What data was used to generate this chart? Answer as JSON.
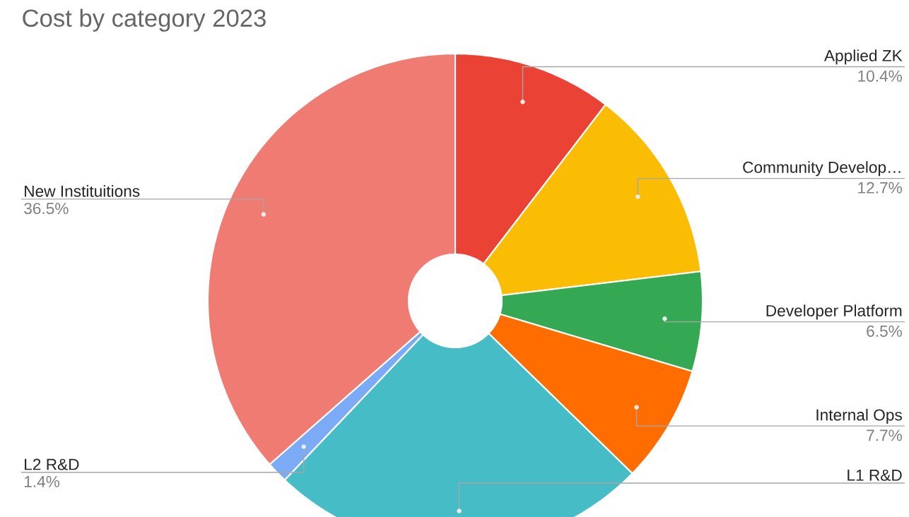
{
  "chart_data": {
    "type": "donut",
    "title": "Cost by category 2023",
    "categories": [
      "Applied ZK",
      "Community Develop…",
      "Developer Platform",
      "Internal Ops",
      "L1 R&D",
      "L2 R&D",
      "New Instituitions"
    ],
    "values": [
      10.4,
      12.7,
      6.5,
      7.7,
      24.8,
      1.4,
      36.5
    ],
    "colors": [
      "#ea4335",
      "#fbbc04",
      "#34a853",
      "#ff6d01",
      "#46bdc6",
      "#7baaf7",
      "#f07b72"
    ],
    "value_labels": [
      "10.4%",
      "12.7%",
      "6.5%",
      "7.7%",
      null,
      "1.4%",
      "36.5%"
    ]
  }
}
